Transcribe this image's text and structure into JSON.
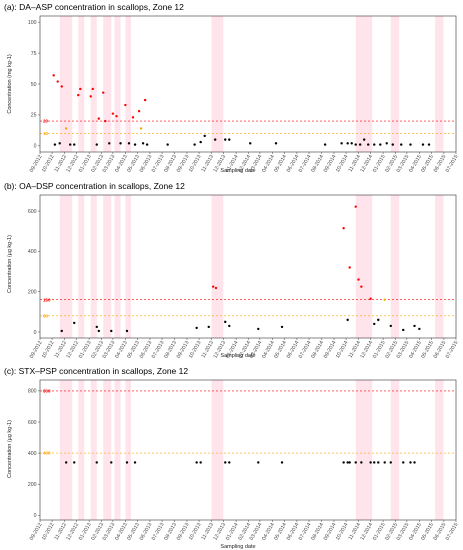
{
  "figure": {
    "shared_x": {
      "xlabel": "Sampling date",
      "ticks": [
        "09-2012",
        "10-2012",
        "11-2012",
        "12-2012",
        "01-2013",
        "02-2013",
        "03-2013",
        "04-2013",
        "05-2013",
        "06-2013",
        "07-2013",
        "08-2013",
        "09-2013",
        "10-2013",
        "11-2013",
        "12-2013",
        "01-2014",
        "02-2014",
        "03-2014",
        "04-2014",
        "05-2014",
        "06-2014",
        "07-2014",
        "08-2014",
        "09-2014",
        "10-2014",
        "11-2014",
        "12-2014",
        "01-2015",
        "02-2015",
        "03-2015",
        "04-2015",
        "05-2015",
        "06-2015",
        "07-2015"
      ],
      "closure_periods": [
        [
          "2012-10-20",
          "2012-11-20"
        ],
        [
          "2012-12-05",
          "2012-12-20"
        ],
        [
          "2013-01-05",
          "2013-01-20"
        ],
        [
          "2013-02-05",
          "2013-02-25"
        ],
        [
          "2013-03-05",
          "2013-03-20"
        ],
        [
          "2013-04-01",
          "2013-04-15"
        ],
        [
          "2013-11-01",
          "2013-11-30"
        ],
        [
          "2014-10-25",
          "2014-12-05"
        ],
        [
          "2015-01-20",
          "2015-02-10"
        ],
        [
          "2015-05-10",
          "2015-05-31"
        ]
      ]
    },
    "colors": {
      "regulatory": "#ff0000",
      "half": "#ffa500",
      "below": "#000000",
      "closure": "#ffe4ec",
      "frame": "#333333"
    }
  },
  "chart_data": [
    {
      "type": "scatter",
      "title": "(a): DA–ASP concentration in scallops, Zone 12",
      "xlabel": "Sampling date",
      "ylabel": "Concentration (mg kg-1)",
      "ylim": [
        -5,
        105
      ],
      "yticks": [
        0,
        25,
        50,
        75,
        100
      ],
      "grid": false,
      "reference_lines": [
        {
          "value": 20,
          "label": "20",
          "color": "#ff0000"
        },
        {
          "value": 10,
          "label": "10",
          "color": "#ffa500"
        }
      ],
      "points": [
        [
          "2012-10-05",
          57,
          "red"
        ],
        [
          "2012-10-15",
          52,
          "red"
        ],
        [
          "2012-10-25",
          48,
          "red"
        ],
        [
          "2012-10-08",
          1,
          "black"
        ],
        [
          "2012-10-20",
          2,
          "black"
        ],
        [
          "2012-11-05",
          14,
          "orange"
        ],
        [
          "2012-11-15",
          1,
          "black"
        ],
        [
          "2012-11-25",
          1,
          "black"
        ],
        [
          "2012-12-05",
          41,
          "red"
        ],
        [
          "2012-12-10",
          46,
          "red"
        ],
        [
          "2013-01-05",
          40,
          "red"
        ],
        [
          "2013-01-10",
          46,
          "red"
        ],
        [
          "2013-01-20",
          1,
          "black"
        ],
        [
          "2013-01-25",
          22,
          "red"
        ],
        [
          "2013-02-05",
          43,
          "red"
        ],
        [
          "2013-02-10",
          20,
          "red"
        ],
        [
          "2013-02-20",
          2,
          "black"
        ],
        [
          "2013-03-01",
          26,
          "red"
        ],
        [
          "2013-03-10",
          24,
          "red"
        ],
        [
          "2013-03-20",
          2,
          "black"
        ],
        [
          "2013-04-01",
          33,
          "red"
        ],
        [
          "2013-04-10",
          2,
          "black"
        ],
        [
          "2013-04-20",
          23,
          "red"
        ],
        [
          "2013-04-25",
          1,
          "black"
        ],
        [
          "2013-05-05",
          28,
          "red"
        ],
        [
          "2013-05-10",
          14,
          "orange"
        ],
        [
          "2013-05-15",
          2,
          "black"
        ],
        [
          "2013-05-20",
          37,
          "red"
        ],
        [
          "2013-05-25",
          1,
          "black"
        ],
        [
          "2013-07-15",
          1,
          "black"
        ],
        [
          "2013-09-20",
          1,
          "black"
        ],
        [
          "2013-10-05",
          3,
          "black"
        ],
        [
          "2013-10-15",
          8,
          "black"
        ],
        [
          "2013-11-10",
          5,
          "black"
        ],
        [
          "2013-12-05",
          5,
          "black"
        ],
        [
          "2013-12-15",
          5,
          "black"
        ],
        [
          "2014-02-05",
          2,
          "black"
        ],
        [
          "2014-04-10",
          2,
          "black"
        ],
        [
          "2014-08-10",
          1,
          "black"
        ],
        [
          "2014-09-20",
          2,
          "black"
        ],
        [
          "2014-10-05",
          2,
          "black"
        ],
        [
          "2014-10-15",
          2,
          "black"
        ],
        [
          "2014-10-25",
          1,
          "black"
        ],
        [
          "2014-11-05",
          1,
          "black"
        ],
        [
          "2014-11-15",
          5,
          "black"
        ],
        [
          "2014-11-25",
          1,
          "black"
        ],
        [
          "2014-12-10",
          1,
          "black"
        ],
        [
          "2014-12-25",
          1,
          "black"
        ],
        [
          "2015-01-10",
          2,
          "black"
        ],
        [
          "2015-01-25",
          1,
          "black"
        ],
        [
          "2015-02-15",
          1,
          "black"
        ],
        [
          "2015-03-10",
          1,
          "black"
        ],
        [
          "2015-04-10",
          1,
          "black"
        ],
        [
          "2015-04-25",
          1,
          "black"
        ]
      ]
    },
    {
      "type": "scatter",
      "title": "(b): OA–DSP concentration in scallops, Zone 12",
      "xlabel": "Sampling date",
      "ylabel": "Concentration (µg kg-1)",
      "ylim": [
        -30,
        680
      ],
      "yticks": [
        0,
        200,
        400,
        600
      ],
      "grid": false,
      "reference_lines": [
        {
          "value": 160,
          "label": "160",
          "color": "#ff0000"
        },
        {
          "value": 80,
          "label": "80",
          "color": "#ffa500"
        }
      ],
      "points": [
        [
          "2012-10-25",
          5,
          "black"
        ],
        [
          "2012-11-25",
          45,
          "black"
        ],
        [
          "2013-01-20",
          25,
          "black"
        ],
        [
          "2013-01-25",
          5,
          "black"
        ],
        [
          "2013-02-25",
          5,
          "black"
        ],
        [
          "2013-04-05",
          5,
          "black"
        ],
        [
          "2013-09-25",
          20,
          "black"
        ],
        [
          "2013-10-25",
          25,
          "black"
        ],
        [
          "2013-11-05",
          225,
          "red"
        ],
        [
          "2013-11-12",
          218,
          "red"
        ],
        [
          "2013-12-05",
          50,
          "black"
        ],
        [
          "2013-12-15",
          30,
          "black"
        ],
        [
          "2014-02-25",
          15,
          "black"
        ],
        [
          "2014-04-25",
          25,
          "black"
        ],
        [
          "2014-09-25",
          515,
          "red"
        ],
        [
          "2014-10-05",
          60,
          "black"
        ],
        [
          "2014-10-10",
          320,
          "red"
        ],
        [
          "2014-10-25",
          622,
          "red"
        ],
        [
          "2014-11-01",
          260,
          "red"
        ],
        [
          "2014-11-08",
          225,
          "red"
        ],
        [
          "2014-12-01",
          165,
          "red"
        ],
        [
          "2014-12-10",
          40,
          "black"
        ],
        [
          "2014-12-20",
          60,
          "black"
        ],
        [
          "2015-01-05",
          160,
          "orange"
        ],
        [
          "2015-01-20",
          30,
          "black"
        ],
        [
          "2015-02-20",
          10,
          "black"
        ],
        [
          "2015-03-20",
          30,
          "black"
        ],
        [
          "2015-04-01",
          15,
          "black"
        ]
      ]
    },
    {
      "type": "scatter",
      "title": "(c): STX–PSP concentration in scallops, Zone 12",
      "xlabel": "Sampling date",
      "ylabel": "Concentration (µg kg-1)",
      "ylim": [
        -30,
        870
      ],
      "yticks": [
        0,
        200,
        400,
        600,
        800
      ],
      "grid": false,
      "reference_lines": [
        {
          "value": 800,
          "label": "800",
          "color": "#ff0000"
        },
        {
          "value": 400,
          "label": "400",
          "color": "#ffa500"
        }
      ],
      "points": [
        [
          "2012-11-05",
          340,
          "black"
        ],
        [
          "2012-11-25",
          340,
          "black"
        ],
        [
          "2013-01-20",
          340,
          "black"
        ],
        [
          "2013-02-25",
          340,
          "black"
        ],
        [
          "2013-04-05",
          340,
          "black"
        ],
        [
          "2013-04-25",
          340,
          "black"
        ],
        [
          "2013-09-25",
          340,
          "black"
        ],
        [
          "2013-10-05",
          340,
          "black"
        ],
        [
          "2013-12-05",
          340,
          "black"
        ],
        [
          "2013-12-15",
          340,
          "black"
        ],
        [
          "2014-02-25",
          340,
          "black"
        ],
        [
          "2014-04-25",
          340,
          "black"
        ],
        [
          "2014-09-25",
          340,
          "black"
        ],
        [
          "2014-10-05",
          340,
          "black"
        ],
        [
          "2014-10-10",
          340,
          "black"
        ],
        [
          "2014-10-25",
          340,
          "black"
        ],
        [
          "2014-11-08",
          340,
          "black"
        ],
        [
          "2014-12-01",
          340,
          "black"
        ],
        [
          "2014-12-10",
          340,
          "black"
        ],
        [
          "2014-12-20",
          340,
          "black"
        ],
        [
          "2015-01-05",
          340,
          "black"
        ],
        [
          "2015-01-20",
          340,
          "black"
        ],
        [
          "2015-02-20",
          340,
          "black"
        ],
        [
          "2015-03-10",
          340,
          "black"
        ],
        [
          "2015-03-20",
          340,
          "black"
        ]
      ]
    }
  ]
}
